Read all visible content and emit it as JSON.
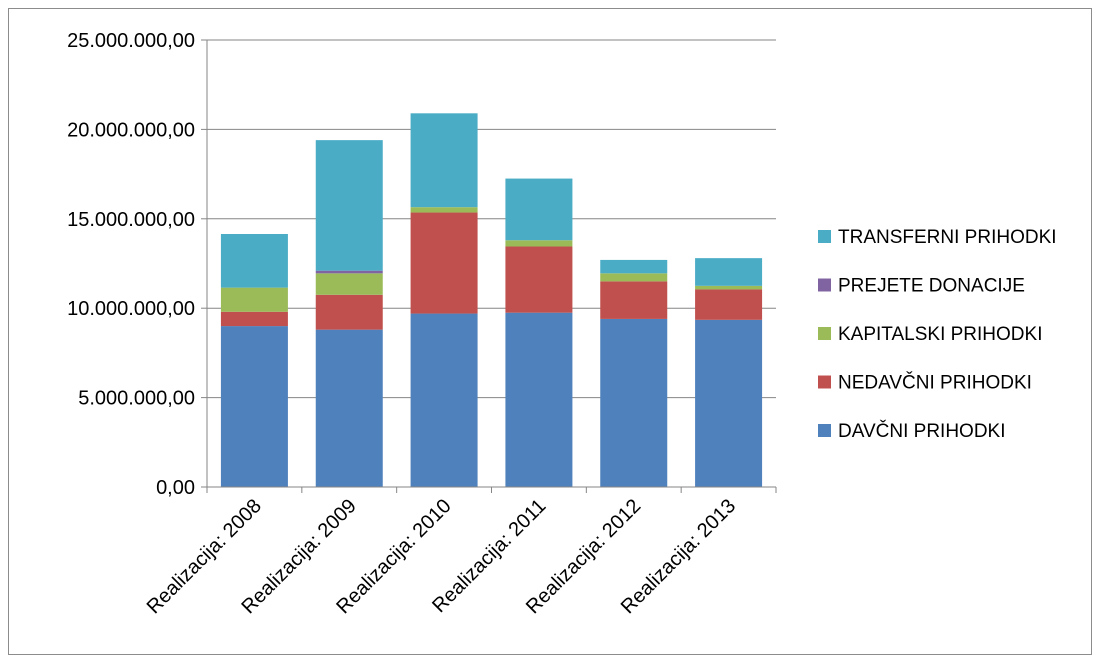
{
  "chart_data": {
    "type": "bar",
    "stacked": true,
    "categories": [
      "Realizacija: 2008",
      "Realizacija: 2009",
      "Realizacija: 2010",
      "Realizacija: 2011",
      "Realizacija: 2012",
      "Realizacija: 2013"
    ],
    "series": [
      {
        "name": "DAVČNI PRIHODKI",
        "color": "#4F81BD",
        "values": [
          9000000,
          8800000,
          9700000,
          9750000,
          9400000,
          9350000
        ]
      },
      {
        "name": "NEDAVČNI PRIHODKI",
        "color": "#C0504D",
        "values": [
          800000,
          1950000,
          5650000,
          3700000,
          2100000,
          1700000
        ]
      },
      {
        "name": "KAPITALSKI PRIHODKI",
        "color": "#9BBB59",
        "values": [
          1350000,
          1200000,
          300000,
          350000,
          450000,
          200000
        ]
      },
      {
        "name": "PREJETE DONACIJE",
        "color": "#8064A2",
        "values": [
          0,
          150000,
          0,
          0,
          0,
          0
        ]
      },
      {
        "name": "TRANSFERNI PRIHODKI",
        "color": "#4BACC6",
        "values": [
          3000000,
          7300000,
          5250000,
          3450000,
          750000,
          1550000
        ]
      }
    ],
    "yticks": [
      "0,00",
      "5.000.000,00",
      "10.000.000,00",
      "15.000.000,00",
      "20.000.000,00",
      "25.000.000,00"
    ],
    "ylim": [
      0,
      25000000
    ],
    "title": "",
    "xlabel": "",
    "ylabel": "",
    "grid": true,
    "legend_position": "right",
    "legend_order": [
      "TRANSFERNI PRIHODKI",
      "PREJETE DONACIJE",
      "KAPITALSKI PRIHODKI",
      "NEDAVČNI PRIHODKI",
      "DAVČNI PRIHODKI"
    ]
  }
}
